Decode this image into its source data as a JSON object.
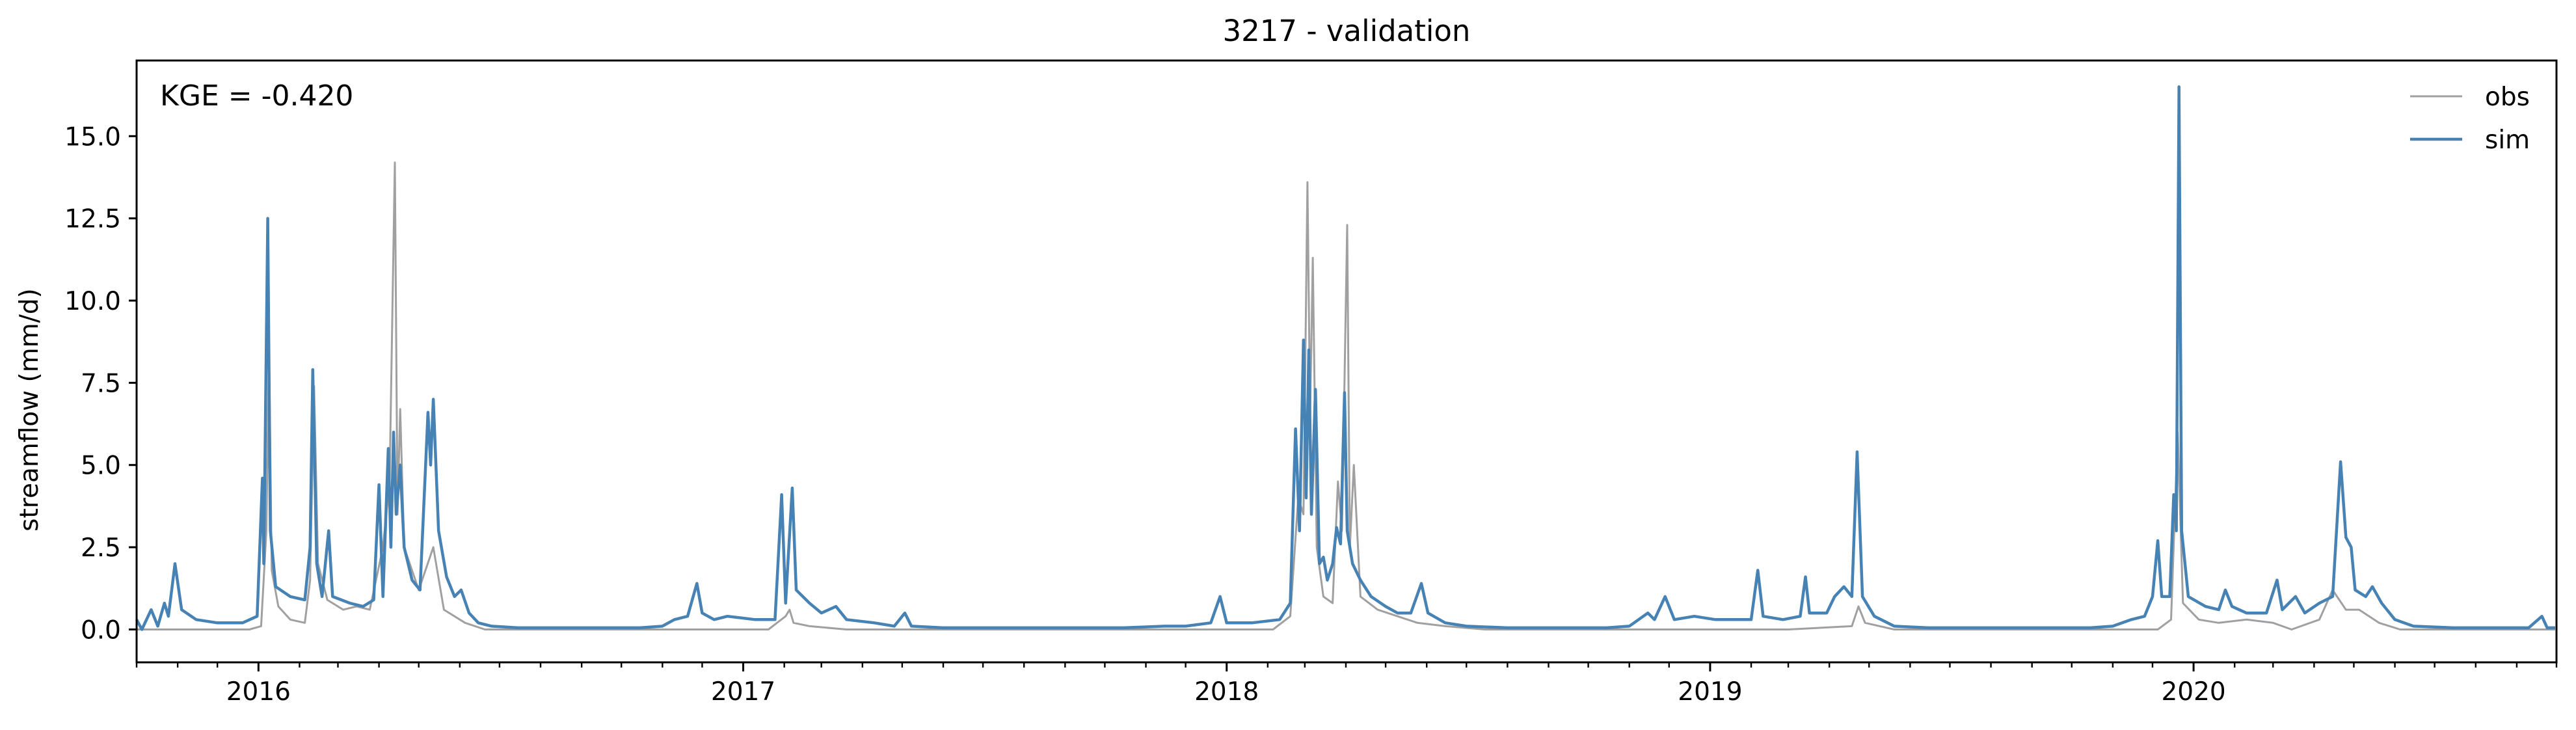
{
  "chart_data": {
    "type": "line",
    "title": "3217 - validation",
    "xlabel": "",
    "ylabel": "streamflow (mm/d)",
    "annotation": "KGE = -0.420",
    "x_range": [
      "2015-10-01",
      "2020-09-30"
    ],
    "ylim": [
      -1.0,
      17.3
    ],
    "y_ticks": [
      "0.0",
      "2.5",
      "5.0",
      "7.5",
      "10.0",
      "12.5",
      "15.0"
    ],
    "x_ticks": [
      "2016",
      "2017",
      "2018",
      "2019",
      "2020"
    ],
    "grid": false,
    "legend_position": "top-right",
    "series": [
      {
        "name": "obs",
        "color": "#a0a0a0",
        "points": [
          [
            "2015-10-01",
            0.0
          ],
          [
            "2015-10-20",
            0.0
          ],
          [
            "2015-11-10",
            0.0
          ],
          [
            "2015-12-01",
            0.0
          ],
          [
            "2015-12-25",
            0.0
          ],
          [
            "2016-01-03",
            0.1
          ],
          [
            "2016-01-07",
            3.0
          ],
          [
            "2016-01-09",
            8.6
          ],
          [
            "2016-01-11",
            1.8
          ],
          [
            "2016-01-16",
            0.7
          ],
          [
            "2016-01-25",
            0.3
          ],
          [
            "2016-02-05",
            0.2
          ],
          [
            "2016-02-09",
            1.5
          ],
          [
            "2016-02-12",
            7.4
          ],
          [
            "2016-02-15",
            2.0
          ],
          [
            "2016-02-22",
            0.9
          ],
          [
            "2016-03-05",
            0.6
          ],
          [
            "2016-03-15",
            0.7
          ],
          [
            "2016-03-25",
            0.6
          ],
          [
            "2016-04-04",
            2.5
          ],
          [
            "2016-04-09",
            4.5
          ],
          [
            "2016-04-13",
            14.2
          ],
          [
            "2016-04-15",
            3.5
          ],
          [
            "2016-04-17",
            6.7
          ],
          [
            "2016-04-20",
            2.5
          ],
          [
            "2016-05-01",
            1.2
          ],
          [
            "2016-05-12",
            2.5
          ],
          [
            "2016-05-20",
            0.6
          ],
          [
            "2016-06-05",
            0.2
          ],
          [
            "2016-06-20",
            0.0
          ],
          [
            "2016-07-10",
            0.0
          ],
          [
            "2016-08-10",
            0.0
          ],
          [
            "2016-09-10",
            0.0
          ],
          [
            "2016-10-10",
            0.0
          ],
          [
            "2016-11-15",
            0.0
          ],
          [
            "2016-12-20",
            0.0
          ],
          [
            "2017-01-20",
            0.0
          ],
          [
            "2017-02-02",
            0.4
          ],
          [
            "2017-02-05",
            0.6
          ],
          [
            "2017-02-08",
            0.2
          ],
          [
            "2017-02-20",
            0.1
          ],
          [
            "2017-03-20",
            0.0
          ],
          [
            "2017-05-01",
            0.0
          ],
          [
            "2017-06-15",
            0.0
          ],
          [
            "2017-08-01",
            0.0
          ],
          [
            "2017-09-15",
            0.0
          ],
          [
            "2017-11-01",
            0.0
          ],
          [
            "2017-12-15",
            0.0
          ],
          [
            "2018-01-20",
            0.0
          ],
          [
            "2018-02-05",
            0.0
          ],
          [
            "2018-02-18",
            0.4
          ],
          [
            "2018-02-24",
            4.0
          ],
          [
            "2018-02-28",
            3.5
          ],
          [
            "2018-03-03",
            13.6
          ],
          [
            "2018-03-05",
            6.5
          ],
          [
            "2018-03-07",
            11.3
          ],
          [
            "2018-03-10",
            2.5
          ],
          [
            "2018-03-15",
            1.0
          ],
          [
            "2018-03-22",
            0.8
          ],
          [
            "2018-03-26",
            4.5
          ],
          [
            "2018-03-29",
            3.0
          ],
          [
            "2018-04-02",
            12.3
          ],
          [
            "2018-04-04",
            2.5
          ],
          [
            "2018-04-07",
            5.0
          ],
          [
            "2018-04-12",
            1.0
          ],
          [
            "2018-04-25",
            0.6
          ],
          [
            "2018-05-10",
            0.4
          ],
          [
            "2018-05-25",
            0.2
          ],
          [
            "2018-06-15",
            0.1
          ],
          [
            "2018-07-15",
            0.0
          ],
          [
            "2018-09-01",
            0.0
          ],
          [
            "2018-10-20",
            0.0
          ],
          [
            "2018-12-01",
            0.0
          ],
          [
            "2019-01-15",
            0.0
          ],
          [
            "2019-03-01",
            0.0
          ],
          [
            "2019-04-18",
            0.1
          ],
          [
            "2019-04-23",
            0.7
          ],
          [
            "2019-04-28",
            0.2
          ],
          [
            "2019-05-20",
            0.0
          ],
          [
            "2019-07-01",
            0.0
          ],
          [
            "2019-09-01",
            0.0
          ],
          [
            "2019-11-01",
            0.0
          ],
          [
            "2019-12-05",
            0.0
          ],
          [
            "2019-12-15",
            0.3
          ],
          [
            "2019-12-20",
            6.0
          ],
          [
            "2019-12-24",
            0.8
          ],
          [
            "2020-01-05",
            0.3
          ],
          [
            "2020-01-20",
            0.2
          ],
          [
            "2020-02-10",
            0.3
          ],
          [
            "2020-03-01",
            0.2
          ],
          [
            "2020-03-15",
            0.0
          ],
          [
            "2020-04-05",
            0.3
          ],
          [
            "2020-04-15",
            1.2
          ],
          [
            "2020-04-25",
            0.6
          ],
          [
            "2020-05-05",
            0.6
          ],
          [
            "2020-05-20",
            0.2
          ],
          [
            "2020-06-05",
            0.0
          ],
          [
            "2020-07-10",
            0.0
          ],
          [
            "2020-08-15",
            0.0
          ],
          [
            "2020-09-30",
            0.0
          ]
        ]
      },
      {
        "name": "sim",
        "color": "#4682b4",
        "points": [
          [
            "2015-10-01",
            0.3
          ],
          [
            "2015-10-05",
            0.0
          ],
          [
            "2015-10-12",
            0.6
          ],
          [
            "2015-10-17",
            0.1
          ],
          [
            "2015-10-22",
            0.8
          ],
          [
            "2015-10-25",
            0.4
          ],
          [
            "2015-10-30",
            2.0
          ],
          [
            "2015-11-04",
            0.6
          ],
          [
            "2015-11-15",
            0.3
          ],
          [
            "2015-12-01",
            0.2
          ],
          [
            "2015-12-20",
            0.2
          ],
          [
            "2015-12-31",
            0.4
          ],
          [
            "2016-01-04",
            4.6
          ],
          [
            "2016-01-05",
            2.0
          ],
          [
            "2016-01-08",
            12.5
          ],
          [
            "2016-01-10",
            3.0
          ],
          [
            "2016-01-14",
            1.3
          ],
          [
            "2016-01-25",
            1.0
          ],
          [
            "2016-02-05",
            0.9
          ],
          [
            "2016-02-09",
            2.5
          ],
          [
            "2016-02-11",
            7.9
          ],
          [
            "2016-02-14",
            2.0
          ],
          [
            "2016-02-18",
            1.0
          ],
          [
            "2016-02-23",
            3.0
          ],
          [
            "2016-02-26",
            1.0
          ],
          [
            "2016-03-10",
            0.8
          ],
          [
            "2016-03-20",
            0.7
          ],
          [
            "2016-03-28",
            0.9
          ],
          [
            "2016-04-01",
            4.4
          ],
          [
            "2016-04-04",
            1.0
          ],
          [
            "2016-04-08",
            5.5
          ],
          [
            "2016-04-10",
            2.5
          ],
          [
            "2016-04-12",
            6.0
          ],
          [
            "2016-04-14",
            3.5
          ],
          [
            "2016-04-17",
            5.0
          ],
          [
            "2016-04-20",
            2.5
          ],
          [
            "2016-04-26",
            1.5
          ],
          [
            "2016-05-02",
            1.2
          ],
          [
            "2016-05-08",
            6.6
          ],
          [
            "2016-05-10",
            5.0
          ],
          [
            "2016-05-12",
            7.0
          ],
          [
            "2016-05-16",
            3.0
          ],
          [
            "2016-05-22",
            1.6
          ],
          [
            "2016-05-28",
            1.0
          ],
          [
            "2016-06-02",
            1.2
          ],
          [
            "2016-06-08",
            0.5
          ],
          [
            "2016-06-15",
            0.2
          ],
          [
            "2016-06-25",
            0.1
          ],
          [
            "2016-07-15",
            0.05
          ],
          [
            "2016-08-15",
            0.05
          ],
          [
            "2016-09-15",
            0.05
          ],
          [
            "2016-10-15",
            0.05
          ],
          [
            "2016-11-01",
            0.1
          ],
          [
            "2016-11-10",
            0.3
          ],
          [
            "2016-11-20",
            0.4
          ],
          [
            "2016-11-27",
            1.4
          ],
          [
            "2016-12-01",
            0.5
          ],
          [
            "2016-12-10",
            0.3
          ],
          [
            "2016-12-20",
            0.4
          ],
          [
            "2017-01-10",
            0.3
          ],
          [
            "2017-01-25",
            0.3
          ],
          [
            "2017-01-30",
            4.1
          ],
          [
            "2017-02-02",
            0.8
          ],
          [
            "2017-02-07",
            4.3
          ],
          [
            "2017-02-10",
            1.2
          ],
          [
            "2017-02-20",
            0.8
          ],
          [
            "2017-03-01",
            0.5
          ],
          [
            "2017-03-12",
            0.7
          ],
          [
            "2017-03-20",
            0.3
          ],
          [
            "2017-04-10",
            0.2
          ],
          [
            "2017-04-25",
            0.1
          ],
          [
            "2017-05-03",
            0.5
          ],
          [
            "2017-05-08",
            0.1
          ],
          [
            "2017-06-01",
            0.05
          ],
          [
            "2017-08-01",
            0.05
          ],
          [
            "2017-09-15",
            0.05
          ],
          [
            "2017-10-15",
            0.05
          ],
          [
            "2017-11-15",
            0.1
          ],
          [
            "2017-12-01",
            0.1
          ],
          [
            "2017-12-20",
            0.2
          ],
          [
            "2017-12-27",
            1.0
          ],
          [
            "2018-01-01",
            0.2
          ],
          [
            "2018-01-20",
            0.2
          ],
          [
            "2018-02-10",
            0.3
          ],
          [
            "2018-02-18",
            0.8
          ],
          [
            "2018-02-22",
            6.1
          ],
          [
            "2018-02-25",
            3.0
          ],
          [
            "2018-02-28",
            8.8
          ],
          [
            "2018-03-02",
            4.0
          ],
          [
            "2018-03-04",
            8.5
          ],
          [
            "2018-03-06",
            3.5
          ],
          [
            "2018-03-09",
            7.3
          ],
          [
            "2018-03-12",
            2.0
          ],
          [
            "2018-03-15",
            2.2
          ],
          [
            "2018-03-18",
            1.5
          ],
          [
            "2018-03-22",
            2.0
          ],
          [
            "2018-03-25",
            3.1
          ],
          [
            "2018-03-28",
            2.6
          ],
          [
            "2018-03-31",
            7.2
          ],
          [
            "2018-04-02",
            3.0
          ],
          [
            "2018-04-06",
            2.0
          ],
          [
            "2018-04-12",
            1.5
          ],
          [
            "2018-04-20",
            1.0
          ],
          [
            "2018-05-01",
            0.7
          ],
          [
            "2018-05-10",
            0.5
          ],
          [
            "2018-05-20",
            0.5
          ],
          [
            "2018-05-28",
            1.4
          ],
          [
            "2018-06-02",
            0.5
          ],
          [
            "2018-06-15",
            0.2
          ],
          [
            "2018-07-01",
            0.1
          ],
          [
            "2018-08-01",
            0.05
          ],
          [
            "2018-09-15",
            0.05
          ],
          [
            "2018-10-15",
            0.05
          ],
          [
            "2018-11-01",
            0.1
          ],
          [
            "2018-11-15",
            0.5
          ],
          [
            "2018-11-20",
            0.3
          ],
          [
            "2018-11-28",
            1.0
          ],
          [
            "2018-12-05",
            0.3
          ],
          [
            "2018-12-20",
            0.4
          ],
          [
            "2019-01-05",
            0.3
          ],
          [
            "2019-01-20",
            0.3
          ],
          [
            "2019-02-01",
            0.3
          ],
          [
            "2019-02-06",
            1.8
          ],
          [
            "2019-02-10",
            0.4
          ],
          [
            "2019-02-25",
            0.3
          ],
          [
            "2019-03-10",
            0.4
          ],
          [
            "2019-03-14",
            1.6
          ],
          [
            "2019-03-17",
            0.5
          ],
          [
            "2019-03-30",
            0.5
          ],
          [
            "2019-04-05",
            1.0
          ],
          [
            "2019-04-12",
            1.3
          ],
          [
            "2019-04-18",
            1.0
          ],
          [
            "2019-04-22",
            5.4
          ],
          [
            "2019-04-26",
            1.0
          ],
          [
            "2019-05-05",
            0.4
          ],
          [
            "2019-05-20",
            0.1
          ],
          [
            "2019-06-15",
            0.05
          ],
          [
            "2019-08-01",
            0.05
          ],
          [
            "2019-09-15",
            0.05
          ],
          [
            "2019-10-15",
            0.05
          ],
          [
            "2019-11-01",
            0.1
          ],
          [
            "2019-11-15",
            0.3
          ],
          [
            "2019-11-25",
            0.4
          ],
          [
            "2019-12-01",
            1.0
          ],
          [
            "2019-12-05",
            2.7
          ],
          [
            "2019-12-08",
            1.0
          ],
          [
            "2019-12-14",
            1.0
          ],
          [
            "2019-12-17",
            4.1
          ],
          [
            "2019-12-19",
            3.0
          ],
          [
            "2019-12-21",
            16.5
          ],
          [
            "2019-12-23",
            3.0
          ],
          [
            "2019-12-28",
            1.0
          ],
          [
            "2020-01-10",
            0.7
          ],
          [
            "2020-01-20",
            0.6
          ],
          [
            "2020-01-25",
            1.2
          ],
          [
            "2020-01-30",
            0.7
          ],
          [
            "2020-02-10",
            0.5
          ],
          [
            "2020-02-25",
            0.5
          ],
          [
            "2020-03-04",
            1.5
          ],
          [
            "2020-03-08",
            0.6
          ],
          [
            "2020-03-18",
            1.0
          ],
          [
            "2020-03-25",
            0.5
          ],
          [
            "2020-04-05",
            0.8
          ],
          [
            "2020-04-15",
            1.0
          ],
          [
            "2020-04-21",
            5.1
          ],
          [
            "2020-04-25",
            2.8
          ],
          [
            "2020-04-29",
            2.5
          ],
          [
            "2020-05-02",
            1.2
          ],
          [
            "2020-05-10",
            1.0
          ],
          [
            "2020-05-15",
            1.3
          ],
          [
            "2020-05-22",
            0.8
          ],
          [
            "2020-06-01",
            0.3
          ],
          [
            "2020-06-15",
            0.1
          ],
          [
            "2020-07-15",
            0.05
          ],
          [
            "2020-08-15",
            0.05
          ],
          [
            "2020-09-10",
            0.05
          ],
          [
            "2020-09-20",
            0.4
          ],
          [
            "2020-09-24",
            0.05
          ],
          [
            "2020-09-30",
            0.05
          ]
        ]
      }
    ]
  }
}
